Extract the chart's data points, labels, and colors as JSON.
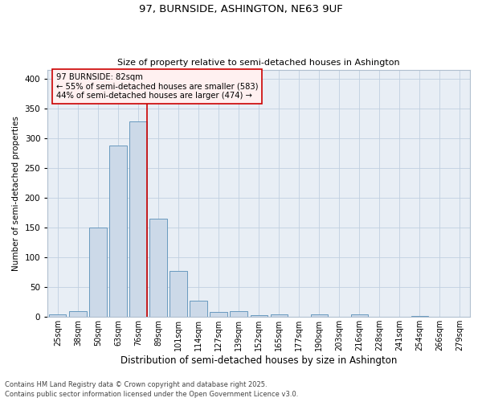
{
  "title1": "97, BURNSIDE, ASHINGTON, NE63 9UF",
  "title2": "Size of property relative to semi-detached houses in Ashington",
  "xlabel": "Distribution of semi-detached houses by size in Ashington",
  "ylabel": "Number of semi-detached properties",
  "categories": [
    "25sqm",
    "38sqm",
    "50sqm",
    "63sqm",
    "76sqm",
    "89sqm",
    "101sqm",
    "114sqm",
    "127sqm",
    "139sqm",
    "152sqm",
    "165sqm",
    "177sqm",
    "190sqm",
    "203sqm",
    "216sqm",
    "228sqm",
    "241sqm",
    "254sqm",
    "266sqm",
    "279sqm"
  ],
  "values": [
    5,
    10,
    150,
    288,
    328,
    165,
    77,
    27,
    8,
    10,
    3,
    4,
    0,
    4,
    0,
    4,
    0,
    0,
    2,
    0,
    0
  ],
  "bar_color": "#ccd9e8",
  "bar_edge_color": "#6899be",
  "grid_color": "#c0cfe0",
  "background_color": "#e8eef5",
  "vline_color": "#cc0000",
  "annotation_text": "97 BURNSIDE: 82sqm\n← 55% of semi-detached houses are smaller (583)\n44% of semi-detached houses are larger (474) →",
  "annotation_box_facecolor": "#fff0f0",
  "annotation_box_edge": "#cc0000",
  "ylim": [
    0,
    415
  ],
  "yticks": [
    0,
    50,
    100,
    150,
    200,
    250,
    300,
    350,
    400
  ],
  "footer1": "Contains HM Land Registry data © Crown copyright and database right 2025.",
  "footer2": "Contains public sector information licensed under the Open Government Licence v3.0."
}
